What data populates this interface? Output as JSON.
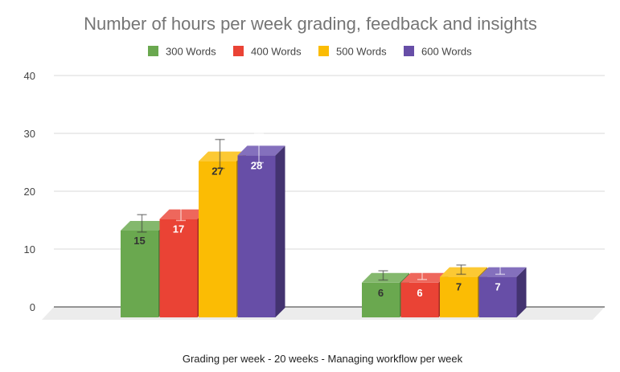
{
  "chart_data": {
    "type": "bar",
    "style": "3d-grouped-column",
    "title": "Number of hours per week grading, feedback and insights",
    "xlabel": "Grading per week - 20 weeks  - Managing workflow per week",
    "ylabel": "",
    "ylim": [
      0,
      40
    ],
    "yticks": [
      0,
      10,
      20,
      30,
      40
    ],
    "grid": true,
    "legend_position": "top",
    "groups": 2,
    "series": [
      {
        "name": "300 Words",
        "color": "#6aa84f",
        "side": "#4e7d3a",
        "top": "#84b86d",
        "label_color": "#333333",
        "values": [
          15,
          6
        ],
        "errors": [
          1.5,
          0.8
        ]
      },
      {
        "name": "400 Words",
        "color": "#ea4335",
        "side": "#a32f25",
        "top": "#ee675c",
        "label_color": "#ffffff",
        "values": [
          17,
          6
        ],
        "errors": [
          1.5,
          0.7
        ]
      },
      {
        "name": "500 Words",
        "color": "#fbbc04",
        "side": "#b08403",
        "top": "#fcc934",
        "label_color": "#333333",
        "values": [
          27,
          7
        ],
        "errors": [
          2.5,
          0.8
        ]
      },
      {
        "name": "600 Words",
        "color": "#674ea7",
        "side": "#433370",
        "top": "#8470bd",
        "label_color": "#ffffff",
        "values": [
          28,
          7
        ],
        "errors": [
          2.5,
          0.8
        ]
      }
    ]
  }
}
